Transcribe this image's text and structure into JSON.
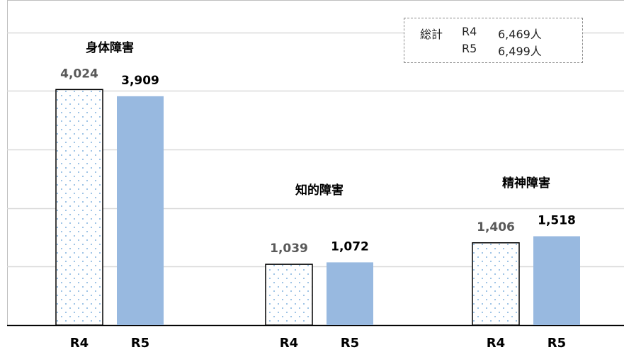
{
  "chart_data": {
    "type": "bar",
    "groups": [
      {
        "title": "身体障害",
        "bars": [
          {
            "category": "R4",
            "value": 4024,
            "label": "4,024"
          },
          {
            "category": "R5",
            "value": 3909,
            "label": "3,909"
          }
        ]
      },
      {
        "title": "知的障害",
        "bars": [
          {
            "category": "R4",
            "value": 1039,
            "label": "1,039"
          },
          {
            "category": "R5",
            "value": 1072,
            "label": "1,072"
          }
        ]
      },
      {
        "title": "精神障害",
        "bars": [
          {
            "category": "R4",
            "value": 1406,
            "label": "1,406"
          },
          {
            "category": "R5",
            "value": 1518,
            "label": "1,518"
          }
        ]
      }
    ],
    "ylim": [
      0,
      5000
    ],
    "grid": true,
    "colors": {
      "R4_fill": "#ffffff",
      "R4_dots": "#5b9bd5",
      "R4_border": "#000000",
      "R5_fill": "#98b9e0",
      "R4_label": "#595959",
      "R5_label": "#000000"
    }
  },
  "totals": {
    "heading": "総計",
    "rows": [
      {
        "year": "R4",
        "value": "6,469人"
      },
      {
        "year": "R5",
        "value": "6,499人"
      }
    ]
  }
}
